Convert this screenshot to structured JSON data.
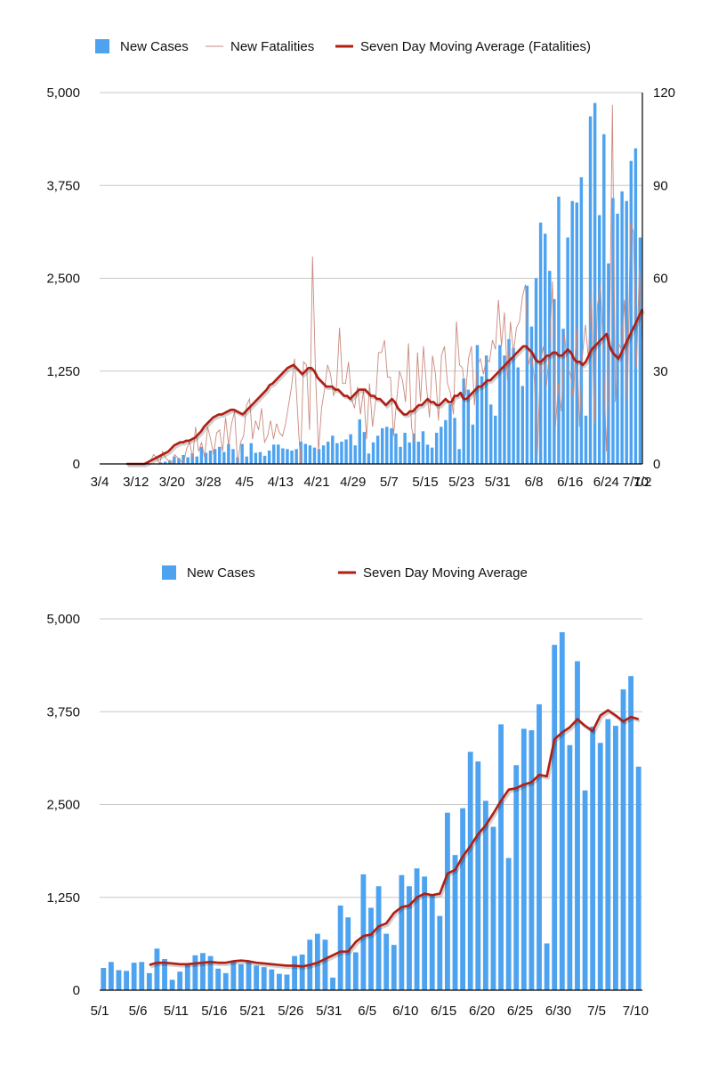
{
  "colors": {
    "cases": "#4ea3f1",
    "fatalities": "#c98a7e",
    "moving_average": "#b01e14",
    "grid": "#c8c8c8"
  },
  "chart_data": [
    {
      "type": "bar",
      "legend": [
        "New Cases",
        "New Fatalities",
        "Seven Day Moving Average (Fatalities)"
      ],
      "legend_position": "top-center",
      "x_ticks": [
        "3/4",
        "3/12",
        "3/20",
        "3/28",
        "4/5",
        "4/13",
        "4/21",
        "4/29",
        "5/7",
        "5/15",
        "5/23",
        "5/31",
        "6/8",
        "6/16",
        "6/24",
        "7/2",
        "7/10"
      ],
      "y_left_ticks": [
        "0",
        "1,250",
        "2,500",
        "3,750",
        "5,000"
      ],
      "y_right_ticks": [
        "0",
        "30",
        "60",
        "90",
        "120"
      ],
      "ylim": [
        0,
        5000
      ],
      "y2lim": [
        0,
        120
      ],
      "start_date": "3/4",
      "series": [
        {
          "name": "New Cases",
          "axis": "left",
          "type": "bar",
          "values": [
            0,
            0,
            0,
            0,
            0,
            0,
            0,
            0,
            0,
            0,
            0,
            0,
            0,
            20,
            30,
            50,
            100,
            80,
            120,
            90,
            140,
            100,
            230,
            150,
            180,
            200,
            230,
            160,
            270,
            200,
            90,
            270,
            100,
            280,
            150,
            160,
            110,
            180,
            260,
            260,
            210,
            200,
            180,
            200,
            300,
            270,
            250,
            220,
            200,
            250,
            300,
            380,
            280,
            300,
            330,
            400,
            250,
            600,
            430,
            140,
            290,
            380,
            480,
            500,
            480,
            410,
            230,
            420,
            290,
            410,
            300,
            440,
            260,
            220,
            420,
            500,
            590,
            800,
            620,
            200,
            1150,
            1000,
            530,
            1600,
            1180,
            1460,
            800,
            650,
            1600,
            1460,
            1680,
            1560,
            1300,
            1050,
            2400,
            1850,
            2500,
            3250,
            3100,
            2600,
            2220,
            3600,
            1820,
            3050,
            3540,
            3520,
            3860,
            650,
            4680,
            4860,
            3350,
            4440,
            2700,
            3580,
            3370,
            3670,
            3540,
            4080,
            4250,
            3050
          ]
        },
        {
          "name": "New Fatalities",
          "axis": "right",
          "type": "line",
          "values": [
            0,
            0,
            0,
            0,
            0,
            0,
            0,
            0,
            0,
            0,
            0,
            0,
            0,
            0,
            0,
            0,
            0,
            1,
            3,
            2,
            0,
            4,
            2,
            1,
            0,
            3,
            2,
            1,
            0,
            5,
            7,
            2,
            12,
            4,
            7,
            2,
            12,
            8,
            3,
            10,
            11,
            4,
            15,
            6,
            13,
            17,
            0,
            7,
            9,
            19,
            21,
            8,
            14,
            11,
            18,
            7,
            9,
            14,
            8,
            13,
            10,
            9,
            13,
            19,
            25,
            34,
            17,
            0,
            33,
            32,
            11,
            67,
            29,
            4,
            18,
            24,
            32,
            29,
            22,
            25,
            44,
            26,
            26,
            33,
            21,
            18,
            25,
            16,
            24,
            8,
            26,
            12,
            20,
            36,
            36,
            40,
            28,
            28,
            9,
            20,
            30,
            27,
            20,
            39,
            12,
            7,
            36,
            20,
            38,
            25,
            15,
            35,
            29,
            14,
            35,
            38,
            26,
            23,
            16,
            46,
            32,
            31,
            22,
            34,
            38,
            19,
            32,
            34,
            29,
            34,
            33,
            40,
            37,
            53,
            38,
            49,
            27,
            46,
            36,
            44,
            46,
            54,
            58,
            32,
            36,
            27,
            3,
            33,
            38,
            25,
            36,
            59,
            12,
            26,
            17,
            42,
            31,
            29,
            21,
            44,
            12,
            35,
            45,
            34,
            56,
            13,
            51,
            58,
            35,
            4,
            36,
            116,
            20,
            39,
            37,
            53,
            20,
            78,
            75,
            31,
            63,
            39
          ]
        },
        {
          "name": "Seven Day Moving Average (Fatalities)",
          "axis": "right",
          "type": "line",
          "values": [
            null,
            null,
            null,
            null,
            null,
            null,
            null,
            null,
            null,
            0,
            0,
            0,
            0,
            0,
            0,
            0,
            0.5,
            1,
            1.5,
            2,
            2.5,
            3,
            3.5,
            4,
            5,
            6,
            6.5,
            7,
            7,
            7.5,
            7.5,
            8,
            8.5,
            9.5,
            10.5,
            12,
            13,
            14,
            15,
            15.5,
            16,
            16,
            16.5,
            17,
            17.5,
            17.5,
            17,
            16.5,
            16,
            17,
            18,
            19,
            20,
            21,
            22,
            23,
            24,
            25.5,
            26,
            27,
            28,
            29,
            30,
            31,
            31.5,
            32,
            31,
            30,
            29,
            30,
            31,
            31,
            30,
            28,
            27,
            26,
            25,
            25,
            25,
            24,
            24,
            23,
            22,
            22,
            21,
            22,
            23,
            24,
            24,
            24,
            23,
            22,
            22,
            21,
            21,
            20,
            19,
            20,
            21,
            20,
            18,
            17,
            16,
            16,
            17,
            17,
            18,
            19,
            19,
            20,
            21,
            20,
            20,
            19,
            19,
            20,
            21,
            20,
            20,
            22,
            22,
            23,
            21,
            21,
            22,
            23,
            24,
            25,
            25,
            26,
            27,
            27,
            28,
            29,
            30,
            31,
            32,
            33,
            34,
            35,
            36,
            37,
            38,
            38,
            37,
            36,
            34,
            33,
            33,
            34,
            35,
            35,
            36,
            36,
            35,
            35,
            36,
            37,
            36,
            34,
            33,
            33,
            32,
            33,
            35,
            37,
            38,
            39,
            40,
            41,
            42,
            38,
            36,
            35,
            34,
            36,
            38,
            40,
            42,
            44,
            46,
            48,
            50
          ]
        }
      ]
    },
    {
      "type": "bar",
      "legend": [
        "New Cases",
        "Seven Day Moving Average"
      ],
      "legend_position": "top-center",
      "x_ticks": [
        "5/1",
        "5/6",
        "5/11",
        "5/16",
        "5/21",
        "5/26",
        "5/31",
        "6/5",
        "6/10",
        "6/15",
        "6/20",
        "6/25",
        "6/30",
        "7/5",
        "7/10"
      ],
      "y_ticks": [
        "0",
        "1,250",
        "2,500",
        "3,750",
        "5,000"
      ],
      "ylim": [
        0,
        5000
      ],
      "start_date": "5/1",
      "series": [
        {
          "name": "New Cases",
          "type": "bar",
          "values": [
            300,
            380,
            270,
            260,
            370,
            380,
            230,
            560,
            420,
            140,
            250,
            340,
            470,
            500,
            460,
            290,
            230,
            400,
            350,
            380,
            330,
            310,
            280,
            220,
            210,
            460,
            480,
            680,
            760,
            680,
            170,
            1140,
            980,
            510,
            1560,
            1110,
            1400,
            760,
            610,
            1550,
            1400,
            1640,
            1530,
            1290,
            1000,
            2390,
            1820,
            2450,
            3210,
            3080,
            2550,
            2200,
            3580,
            1780,
            3030,
            3520,
            3500,
            3850,
            630,
            4650,
            4820,
            3300,
            4430,
            2690,
            3550,
            3330,
            3650,
            3560,
            4050,
            4230,
            3010
          ]
        },
        {
          "name": "Seven Day Moving Average",
          "type": "line",
          "values": [
            null,
            null,
            null,
            null,
            null,
            null,
            340,
            370,
            370,
            360,
            350,
            350,
            360,
            370,
            380,
            370,
            370,
            390,
            400,
            390,
            370,
            360,
            350,
            340,
            330,
            330,
            320,
            340,
            370,
            420,
            470,
            520,
            520,
            650,
            730,
            750,
            860,
            900,
            1040,
            1120,
            1140,
            1250,
            1300,
            1280,
            1300,
            1570,
            1620,
            1800,
            1940,
            2100,
            2220,
            2380,
            2550,
            2700,
            2720,
            2770,
            2800,
            2900,
            2880,
            3380,
            3470,
            3540,
            3650,
            3560,
            3490,
            3700,
            3770,
            3700,
            3620,
            3680,
            3650
          ]
        }
      ]
    }
  ]
}
